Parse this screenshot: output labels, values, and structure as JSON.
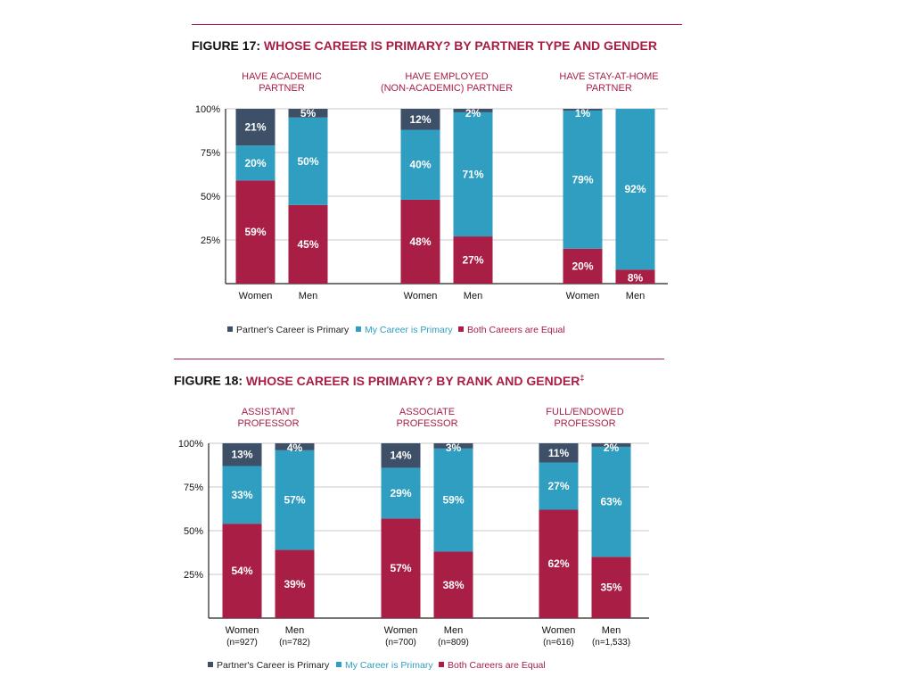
{
  "colors": {
    "partner": "#3e5068",
    "mine": "#2f9ec0",
    "equal": "#a81e45",
    "accent": "#a81e45"
  },
  "figures": [
    {
      "number": "FIGURE 17:",
      "title": "WHOSE CAREER IS PRIMARY? BY PARTNER TYPE AND GENDER",
      "mark": ""
    },
    {
      "number": "FIGURE 18:",
      "title": "WHOSE CAREER IS PRIMARY? BY RANK AND GENDER",
      "mark": "‡"
    }
  ],
  "chart_data": [
    {
      "type": "bar",
      "stacked": true,
      "title": "FIGURE 17: WHOSE CAREER IS PRIMARY? BY PARTNER TYPE AND GENDER",
      "y_ticks": [
        "100%",
        "75%",
        "50%",
        "25%"
      ],
      "ylim": [
        0,
        100
      ],
      "legend": [
        "Partner's Career is Primary",
        "My Career is Primary",
        "Both Careers are Equal"
      ],
      "groups": [
        {
          "label": [
            "HAVE ACADEMIC",
            "PARTNER"
          ],
          "bars": [
            {
              "label": "Women",
              "sub": "",
              "equal": 59,
              "mine": 20,
              "partner": 21,
              "equal_label": "59%",
              "mine_label": "20%",
              "partner_label": "21%"
            },
            {
              "label": "Men",
              "sub": "",
              "equal": 45,
              "mine": 50,
              "partner": 5,
              "equal_label": "45%",
              "mine_label": "50%",
              "partner_label": "5%"
            }
          ]
        },
        {
          "label": [
            "HAVE EMPLOYED",
            "(NON-ACADEMIC) PARTNER"
          ],
          "bars": [
            {
              "label": "Women",
              "sub": "",
              "equal": 48,
              "mine": 40,
              "partner": 12,
              "equal_label": "48%",
              "mine_label": "40%",
              "partner_label": "12%"
            },
            {
              "label": "Men",
              "sub": "",
              "equal": 27,
              "mine": 71,
              "partner": 2,
              "equal_label": "27%",
              "mine_label": "71%",
              "partner_label": "2%"
            }
          ]
        },
        {
          "label": [
            "HAVE STAY-AT-HOME",
            "PARTNER"
          ],
          "bars": [
            {
              "label": "Women",
              "sub": "",
              "equal": 20,
              "mine": 79,
              "partner": 1,
              "equal_label": "20%",
              "mine_label": "79%",
              "partner_label": "1%"
            },
            {
              "label": "Men",
              "sub": "",
              "equal": 8,
              "mine": 92,
              "partner": 0,
              "equal_label": "8%",
              "mine_label": "92%",
              "partner_label": ""
            }
          ]
        }
      ]
    },
    {
      "type": "bar",
      "stacked": true,
      "title": "FIGURE 18: WHOSE CAREER IS PRIMARY? BY RANK AND GENDER‡",
      "y_ticks": [
        "100%",
        "75%",
        "50%",
        "25%"
      ],
      "ylim": [
        0,
        100
      ],
      "legend": [
        "Partner's Career is Primary",
        "My Career is Primary",
        "Both Careers are Equal"
      ],
      "groups": [
        {
          "label": [
            "ASSISTANT",
            "PROFESSOR"
          ],
          "bars": [
            {
              "label": "Women",
              "sub": "(n=927)",
              "equal": 54,
              "mine": 33,
              "partner": 13,
              "equal_label": "54%",
              "mine_label": "33%",
              "partner_label": "13%"
            },
            {
              "label": "Men",
              "sub": "(n=782)",
              "equal": 39,
              "mine": 57,
              "partner": 4,
              "equal_label": "39%",
              "mine_label": "57%",
              "partner_label": "4%"
            }
          ]
        },
        {
          "label": [
            "ASSOCIATE",
            "PROFESSOR"
          ],
          "bars": [
            {
              "label": "Women",
              "sub": "(n=700)",
              "equal": 57,
              "mine": 29,
              "partner": 14,
              "equal_label": "57%",
              "mine_label": "29%",
              "partner_label": "14%"
            },
            {
              "label": "Men",
              "sub": "(n=809)",
              "equal": 38,
              "mine": 59,
              "partner": 3,
              "equal_label": "38%",
              "mine_label": "59%",
              "partner_label": "3%"
            }
          ]
        },
        {
          "label": [
            "FULL/ENDOWED",
            "PROFESSOR"
          ],
          "bars": [
            {
              "label": "Women",
              "sub": "(n=616)",
              "equal": 62,
              "mine": 27,
              "partner": 11,
              "equal_label": "62%",
              "mine_label": "27%",
              "partner_label": "11%"
            },
            {
              "label": "Men",
              "sub": "(n=1,533)",
              "equal": 35,
              "mine": 63,
              "partner": 2,
              "equal_label": "35%",
              "mine_label": "63%",
              "partner_label": "2%"
            }
          ]
        }
      ]
    }
  ]
}
